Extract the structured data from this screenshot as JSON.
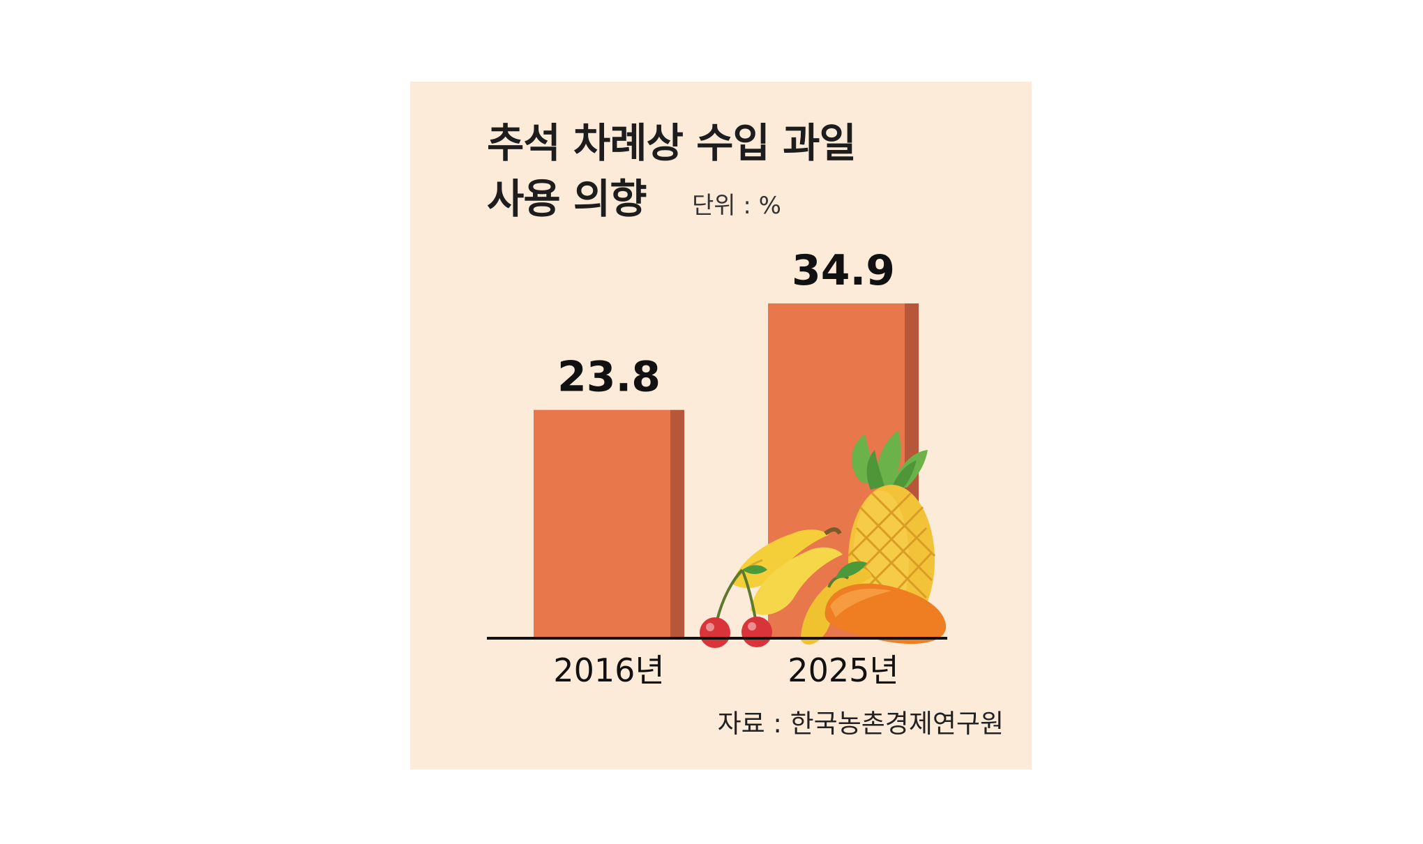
{
  "title_line1": "추석 차례상 수입 과일",
  "title_line2": "사용 의향",
  "unit_label": "단위 : %",
  "source": "자료 : 한국농촌경제연구원",
  "colors": {
    "background": "#fdebd9",
    "bar": "#e8774b",
    "bar_side": "#b7573a",
    "axis": "#111111"
  },
  "chart_data": {
    "type": "bar",
    "categories": [
      "2016년",
      "2025년"
    ],
    "values": [
      23.8,
      34.9
    ],
    "value_labels": [
      "23.8",
      "34.9"
    ],
    "title": "추석 차례상 수입 과일 사용 의향",
    "unit": "%",
    "ylim": [
      0,
      34.9
    ],
    "grid": false,
    "legend": "none"
  }
}
